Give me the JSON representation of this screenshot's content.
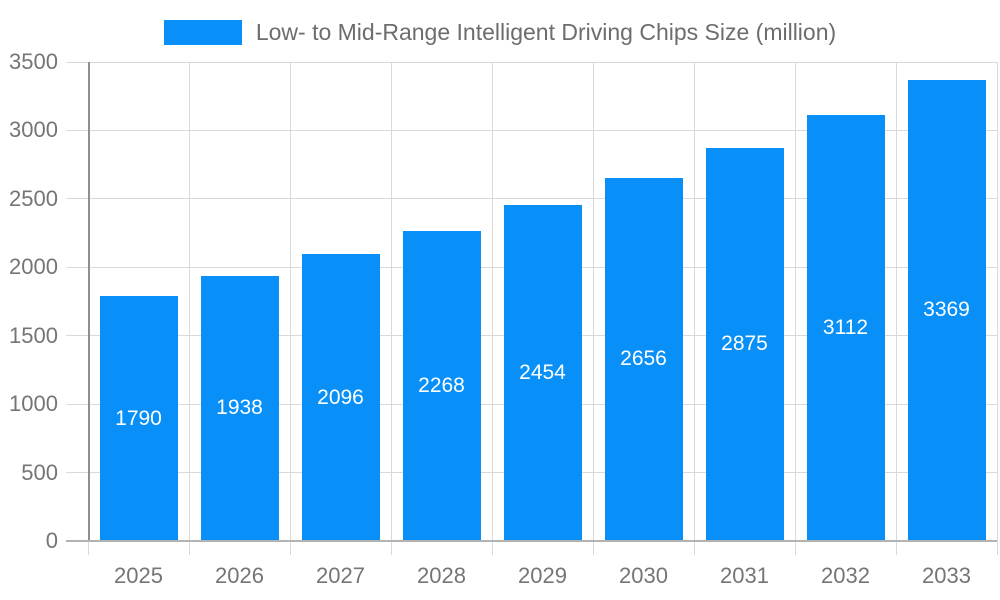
{
  "chart_data": {
    "type": "bar",
    "title": "Low- to Mid-Range Intelligent Driving Chips Size (million)",
    "categories": [
      "2025",
      "2026",
      "2027",
      "2028",
      "2029",
      "2030",
      "2031",
      "2032",
      "2033"
    ],
    "values": [
      1790,
      1938,
      2096,
      2268,
      2454,
      2656,
      2875,
      3112,
      3369
    ],
    "series": [
      {
        "name": "Low- to Mid-Range Intelligent Driving Chips Size (million)",
        "values": [
          1790,
          1938,
          2096,
          2268,
          2454,
          2656,
          2875,
          3112,
          3369
        ]
      }
    ],
    "xlabel": "",
    "ylabel": "",
    "ylim": [
      0,
      3500
    ],
    "yticks": [
      0,
      500,
      1000,
      1500,
      2000,
      2500,
      3000,
      3500
    ],
    "ytick_labels": [
      "0",
      "500",
      "1000",
      "1500",
      "2000",
      "2500",
      "3000",
      "3500"
    ],
    "grid": true,
    "legend_position": "top",
    "value_labels_visible": true,
    "value_label_position": "center-of-bar"
  },
  "colors": {
    "bar": "#0890f8",
    "bar_label": "#ffffff",
    "axis_text": "#757575",
    "title_text": "#6d6d6d",
    "grid_line": "#d9d9d9",
    "axis_line_left": "#8f8f8f",
    "axis_line_bottom": "#b3b3b3",
    "background": "#ffffff"
  }
}
